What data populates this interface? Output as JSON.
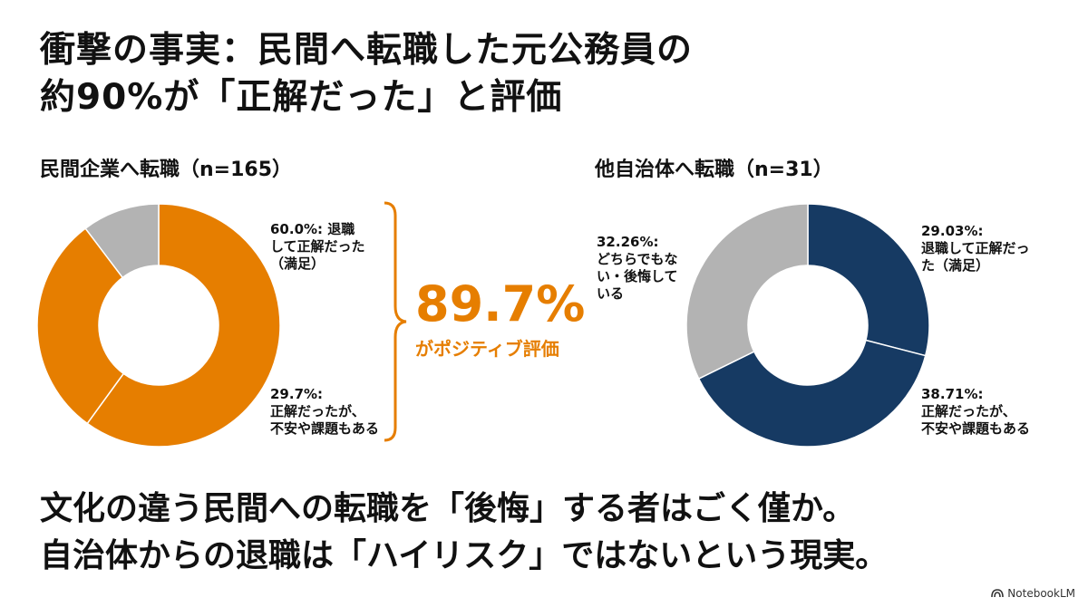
{
  "title_lines": [
    "衝撃の事実：民間へ転職した元公務員の",
    "約90%が「正解だった」と評価"
  ],
  "highlight": {
    "value": "89.7%",
    "caption": "がポジティブ評価",
    "color": "#E67E00"
  },
  "conclusion_lines": [
    "文化の違う民間への転職を「後悔」する者はごく僅か。",
    "自治体からの退職は「ハイリスク」ではないという現実。"
  ],
  "credit": "NotebookLM",
  "chart_data": [
    {
      "type": "pie",
      "title": "民間企業へ転職（n=165）",
      "slices": [
        {
          "value": 60.0,
          "label": "60.0%: 退職\nして正解だった\n（満足）",
          "color": "#E67E00"
        },
        {
          "value": 29.7,
          "label": "29.7%:\n正解だったが、\n不安や課題もある",
          "color": "#E67E00"
        },
        {
          "value": 10.3,
          "label": "",
          "color": "#B3B3B3"
        }
      ]
    },
    {
      "type": "pie",
      "title": "他自治体へ転職（n=31）",
      "slices": [
        {
          "value": 29.03,
          "label": "29.03%:\n退職して正解だっ\nた（満足）",
          "color": "#163A63"
        },
        {
          "value": 38.71,
          "label": "38.71%:\n正解だったが、\n不安や課題もある",
          "color": "#163A63"
        },
        {
          "value": 32.26,
          "label": "32.26%:\nどちらでもな\nい・後悔して\nいる",
          "color": "#B3B3B3"
        }
      ]
    }
  ]
}
